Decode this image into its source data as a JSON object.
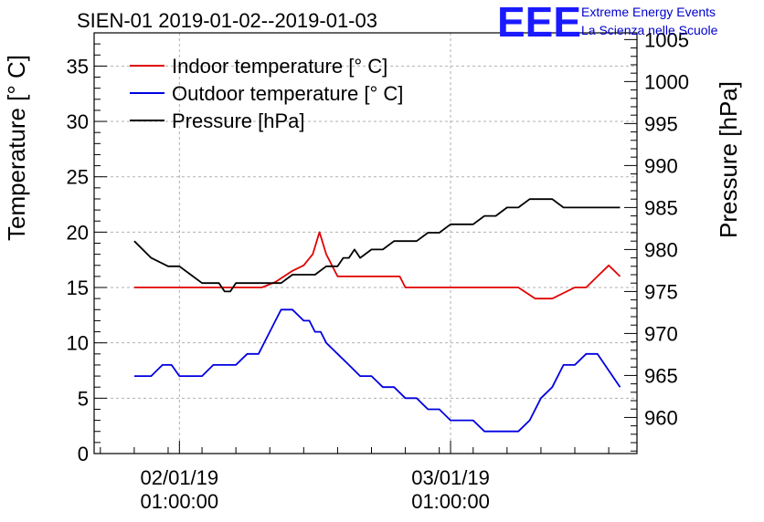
{
  "chart_data": {
    "type": "line",
    "title": "SIEN-01 2019-01-02--2019-01-03",
    "ylabel_left": "Temperature [° C]",
    "ylabel_right": "Pressure [hPa]",
    "ylim_left": [
      0,
      38
    ],
    "ylim_right": [
      955.7,
      1005.8
    ],
    "y_ticks_left": [
      0,
      5,
      10,
      15,
      20,
      25,
      30,
      35
    ],
    "y_ticks_right": [
      960,
      965,
      970,
      975,
      980,
      985,
      990,
      995,
      1000,
      1005
    ],
    "x_unit": "hours since 2019-01-02 00:00",
    "xlim": [
      -6.55,
      41.5
    ],
    "x_ticks": [
      {
        "x": 1,
        "date": "02/01/19",
        "time": "01:00:00"
      },
      {
        "x": 25,
        "date": "03/01/19",
        "time": "01:00:00"
      }
    ],
    "grid": true,
    "legend_position": "top-left",
    "logo": {
      "mark": "EEE",
      "line1": "Extreme Energy Events",
      "line2": "La Scienza nelle Scuole"
    },
    "series": [
      {
        "name": "Indoor temperature [° C]",
        "color": "#e00000",
        "axis": "left",
        "x": [
          -3,
          1,
          5,
          8.3,
          9.5,
          11,
          12,
          12.8,
          13.4,
          14,
          15,
          17,
          19,
          20.5,
          21,
          23,
          26,
          29,
          31,
          32.5,
          34,
          36,
          37,
          38,
          39,
          40
        ],
        "y": [
          15,
          15,
          15,
          15,
          15.5,
          16.5,
          17,
          18,
          20,
          18,
          16,
          16,
          16,
          16,
          15,
          15,
          15,
          15,
          15,
          14,
          14,
          15,
          15,
          16,
          17,
          16
        ]
      },
      {
        "name": "Outdoor temperature [° C]",
        "color": "#0000e0",
        "axis": "left",
        "x": [
          -3,
          -1.5,
          -0.5,
          0.3,
          1,
          3,
          4,
          6,
          7,
          8,
          9,
          9.5,
          10,
          11,
          12,
          12.5,
          13,
          13.5,
          14,
          15,
          16,
          17,
          18,
          19,
          20,
          21,
          22,
          23,
          24,
          25,
          26,
          27,
          28,
          29,
          30,
          31,
          32,
          33,
          34,
          35,
          36,
          37,
          38,
          39,
          40
        ],
        "y": [
          7,
          7,
          8,
          8,
          7,
          7,
          8,
          8,
          9,
          9,
          11,
          12,
          13,
          13,
          12,
          12,
          11,
          11,
          10,
          9,
          8,
          7,
          7,
          6,
          6,
          5,
          5,
          4,
          4,
          3,
          3,
          3,
          2,
          2,
          2,
          2,
          3,
          5,
          6,
          8,
          8,
          9,
          9,
          7.5,
          6
        ]
      },
      {
        "name": "Pressure [hPa]",
        "color": "#000000",
        "axis": "right",
        "x": [
          -3,
          -1.5,
          0,
          1,
          2,
          3,
          4.5,
          5,
          5.5,
          6,
          8,
          10,
          11,
          12,
          13,
          14,
          15,
          15.5,
          16,
          16.5,
          17,
          18,
          19,
          20,
          21,
          22,
          23,
          24,
          25,
          26,
          27,
          28,
          29,
          30,
          31,
          32,
          33,
          34,
          35,
          36,
          40
        ],
        "y": [
          981,
          979,
          978,
          978,
          977,
          976,
          976,
          975,
          975,
          976,
          976,
          976,
          977,
          977,
          977,
          978,
          978,
          979,
          979,
          980,
          979,
          980,
          980,
          981,
          981,
          981,
          982,
          982,
          983,
          983,
          983,
          984,
          984,
          985,
          985,
          986,
          986,
          986,
          985,
          985,
          985
        ]
      }
    ]
  }
}
